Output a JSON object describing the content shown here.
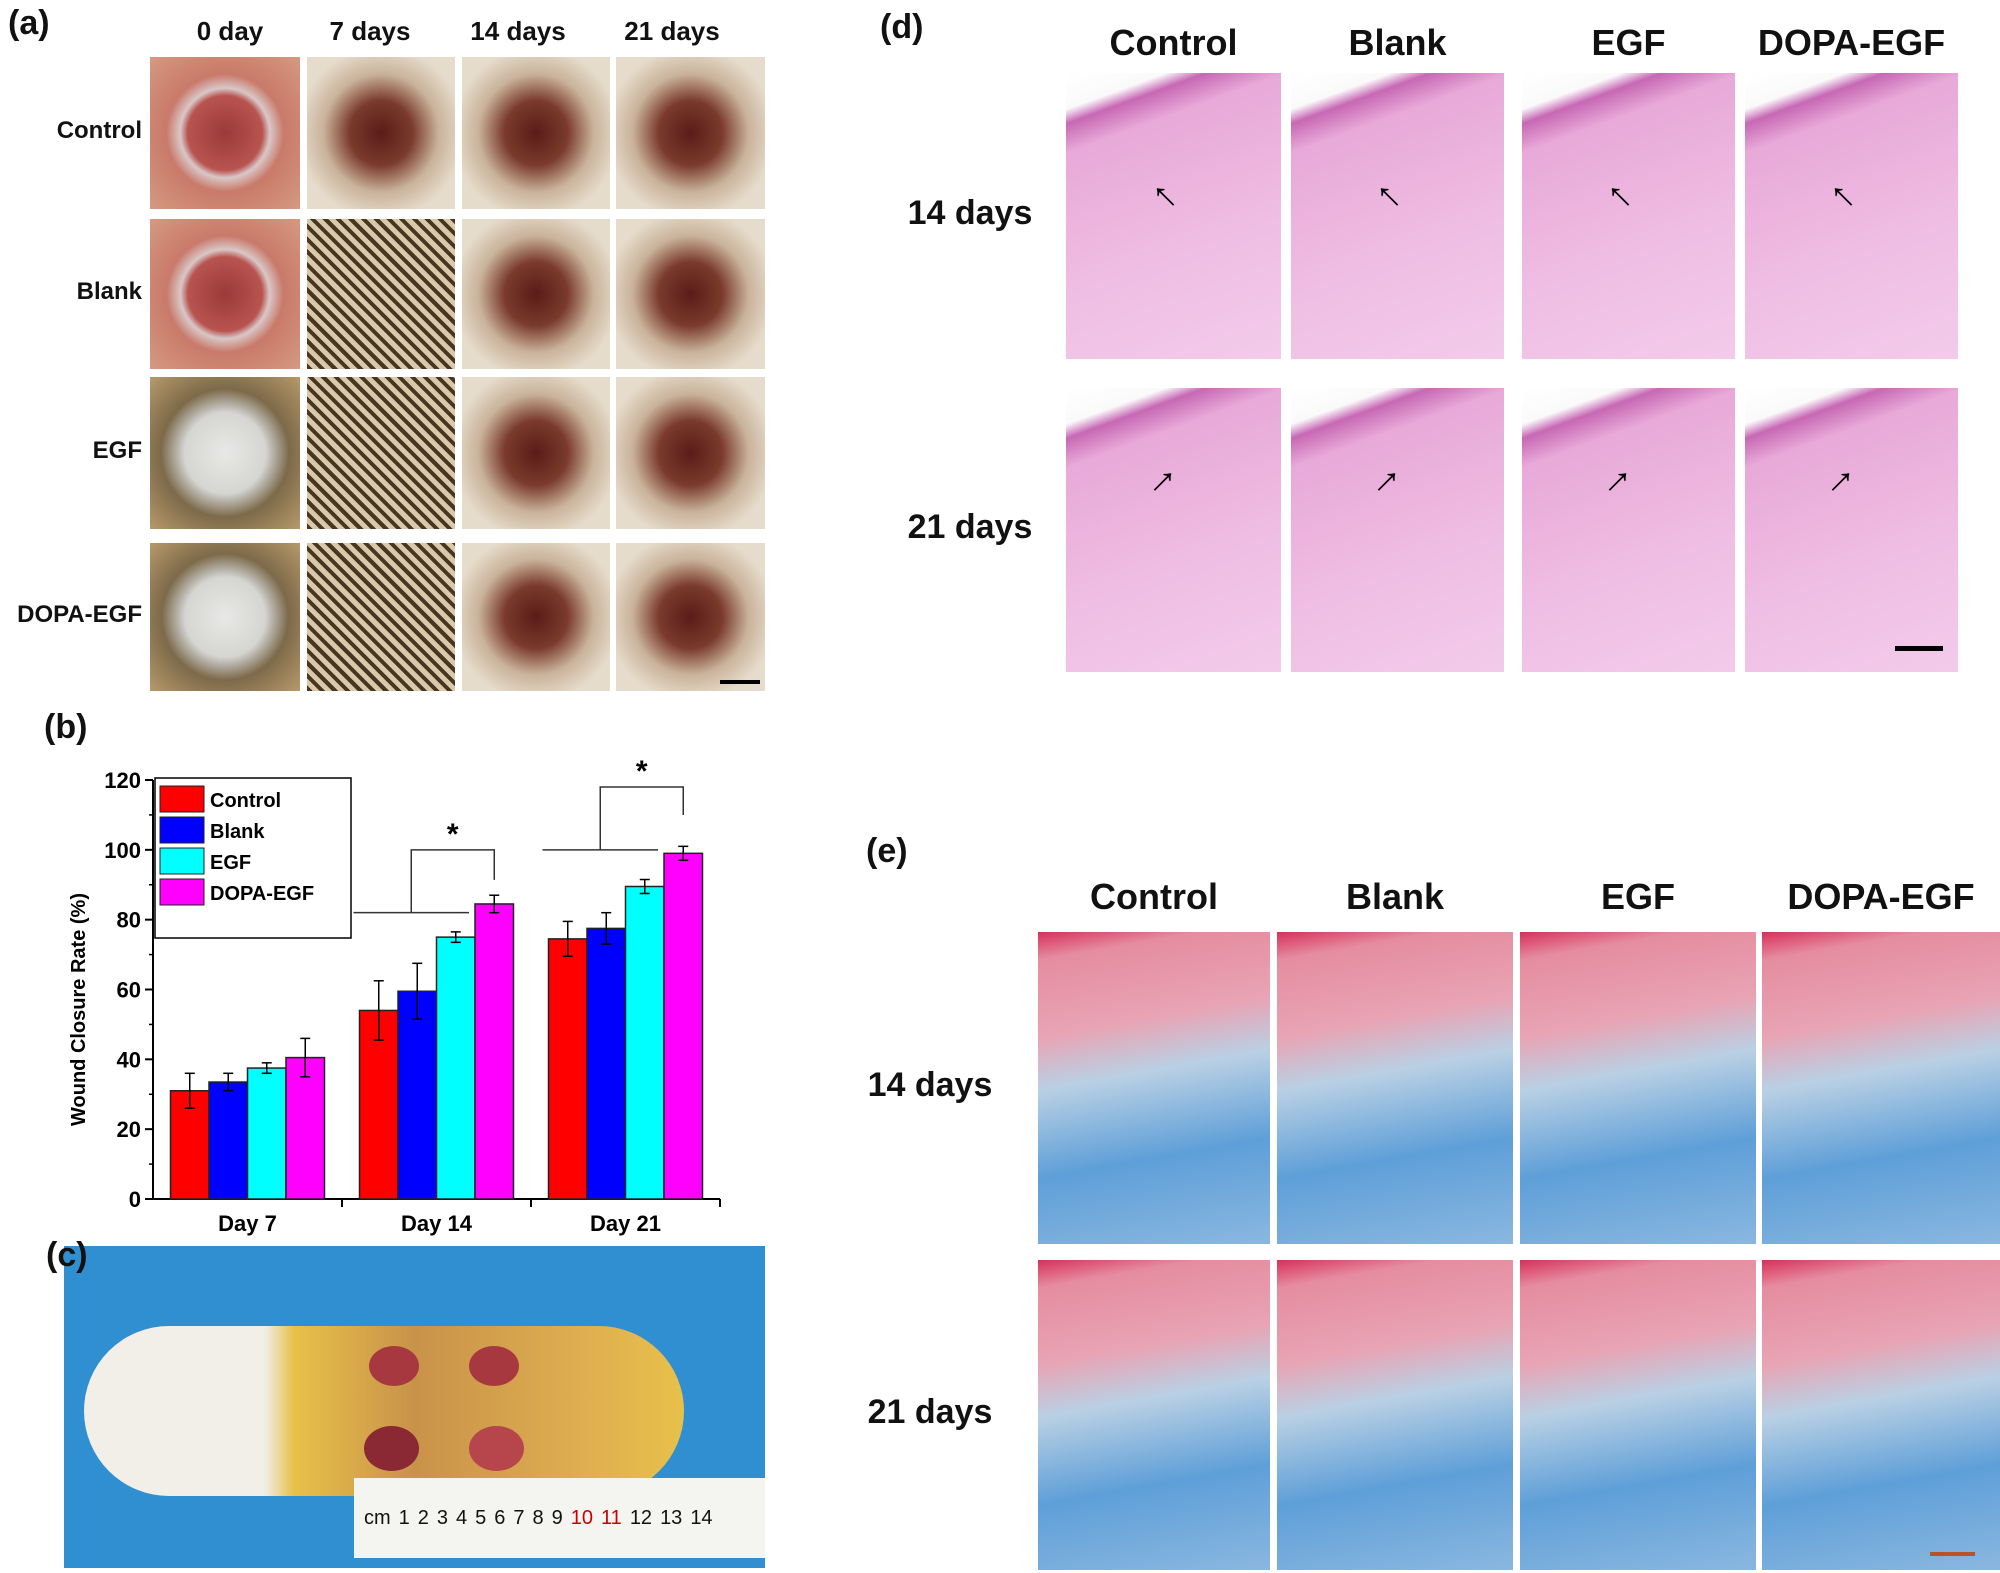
{
  "panel_a": {
    "label": "(a)",
    "columns": [
      "0 day",
      "7 days",
      "14 days",
      "21 days"
    ],
    "rows": [
      "Control",
      "Blank",
      "EGF",
      "DOPA-EGF"
    ]
  },
  "panel_b": {
    "label": "(b)"
  },
  "panel_c": {
    "label": "(c)",
    "ruler_numbers": [
      "cm",
      "1",
      "2",
      "3",
      "4",
      "5",
      "6",
      "7",
      "8",
      "9",
      "10",
      "11",
      "12",
      "13",
      "14"
    ]
  },
  "panel_d": {
    "label": "(d)",
    "columns": [
      "Control",
      "Blank",
      "EGF",
      "DOPA-EGF"
    ],
    "rows": [
      "14 days",
      "21 days"
    ]
  },
  "panel_e": {
    "label": "(e)",
    "columns": [
      "Control",
      "Blank",
      "EGF",
      "DOPA-EGF"
    ],
    "rows": [
      "14 days",
      "21 days"
    ]
  },
  "chart_data": {
    "type": "bar",
    "title": "",
    "xlabel": "",
    "ylabel": "Wound Closure Rate (%)",
    "ylim": [
      0,
      120
    ],
    "yticks": [
      "0",
      "20",
      "40",
      "60",
      "80",
      "100",
      "120"
    ],
    "categories": [
      "Day 7",
      "Day 14",
      "Day 21"
    ],
    "legend_position": "top-left",
    "grid": false,
    "series": [
      {
        "name": "Control",
        "color": "#ff0000",
        "values": [
          31,
          54,
          74.5
        ],
        "errors": [
          5,
          8.5,
          5
        ]
      },
      {
        "name": "Blank",
        "color": "#0000ff",
        "values": [
          33.5,
          59.5,
          77.5
        ],
        "errors": [
          2.5,
          8,
          4.5
        ]
      },
      {
        "name": "EGF",
        "color": "#00ffff",
        "values": [
          37.5,
          75,
          89.5
        ],
        "errors": [
          1.5,
          1.5,
          2
        ]
      },
      {
        "name": "DOPA-EGF",
        "color": "#ff00ff",
        "values": [
          40.5,
          84.5,
          99
        ],
        "errors": [
          5.5,
          2.5,
          2
        ]
      }
    ],
    "annotations": [
      {
        "text": "*",
        "category": "Day 14"
      },
      {
        "text": "*",
        "category": "Day 21"
      }
    ]
  }
}
